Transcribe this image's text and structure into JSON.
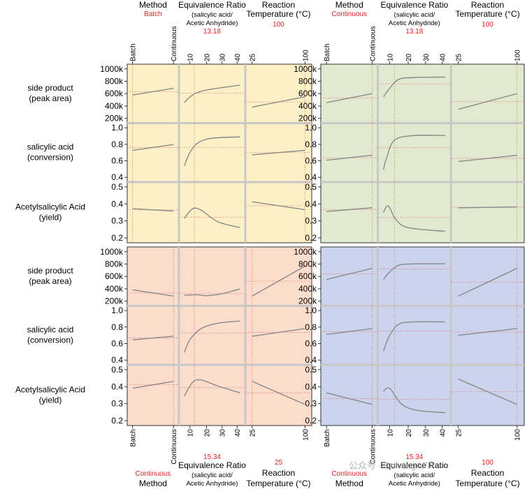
{
  "chart_data": {
    "type": "line",
    "title": "Prediction profiler",
    "factors": [
      {
        "name": "Method",
        "ticks": [
          "Batch",
          "Continuous"
        ]
      },
      {
        "name": "Equivalence Ratio",
        "sub1": "(salicylic acid/",
        "sub2": "Acetic Anhydride)",
        "ticks": [
          "10",
          "20",
          "30",
          "40"
        ]
      },
      {
        "name": "Reaction",
        "name2": "Temperature (°C)",
        "ticks": [
          "25",
          "100"
        ]
      }
    ],
    "responses": [
      {
        "label1": "side product",
        "label2": "(peak area)",
        "ticks": [
          "1000k",
          "800k",
          "600k",
          "400k",
          "200k"
        ]
      },
      {
        "label1": "salicylic acid",
        "label2": "(conversion)",
        "ticks": [
          "1.0",
          "0.8",
          "0.6",
          "0.4"
        ]
      },
      {
        "label1": "Acetylsalicylic Acid",
        "label2": "(yield)",
        "ticks": [
          "0.5",
          "0.4",
          "0.3",
          "0.2"
        ]
      }
    ],
    "panels": [
      {
        "id": "batch-high-temp",
        "bg": "#fdf0c6",
        "settings": {
          "method": "Batch",
          "ratio": "13.18",
          "temp": "100"
        },
        "curves": [
          [
            [
              [
                0,
                0.47
              ],
              [
                1,
                0.62
              ]
            ],
            [
              [
                0,
                0.3
              ],
              [
                0.15,
                0.47
              ],
              [
                0.4,
                0.58
              ],
              [
                1,
                0.69
              ]
            ],
            [
              [
                0,
                0.2
              ],
              [
                1,
                0.43
              ]
            ]
          ],
          [
            [
              [
                0,
                0.55
              ],
              [
                1,
                0.68
              ]
            ],
            [
              [
                0,
                0.2
              ],
              [
                0.1,
                0.5
              ],
              [
                0.25,
                0.72
              ],
              [
                0.5,
                0.82
              ],
              [
                1,
                0.85
              ]
            ],
            [
              [
                0,
                0.45
              ],
              [
                1,
                0.55
              ]
            ]
          ],
          [
            [
              [
                0,
                0.58
              ],
              [
                1,
                0.53
              ]
            ],
            [
              [
                0,
                0.37
              ],
              [
                0.15,
                0.58
              ],
              [
                0.3,
                0.55
              ],
              [
                0.6,
                0.3
              ],
              [
                1,
                0.17
              ]
            ],
            [
              [
                0,
                0.73
              ],
              [
                1,
                0.56
              ]
            ]
          ]
        ]
      },
      {
        "id": "continuous-high-temp",
        "bg": "#e1eacf",
        "settings": {
          "method": "Continuous",
          "ratio": "13.18",
          "temp": "100"
        },
        "curves": [
          [
            [
              [
                0,
                0.3
              ],
              [
                1,
                0.5
              ]
            ],
            [
              [
                0,
                0.43
              ],
              [
                0.1,
                0.62
              ],
              [
                0.25,
                0.82
              ],
              [
                0.5,
                0.86
              ],
              [
                1,
                0.87
              ]
            ],
            [
              [
                0,
                0.15
              ],
              [
                1,
                0.5
              ]
            ]
          ],
          [
            [
              [
                0,
                0.33
              ],
              [
                1,
                0.44
              ]
            ],
            [
              [
                0,
                0.12
              ],
              [
                0.05,
                0.38
              ],
              [
                0.18,
                0.78
              ],
              [
                0.5,
                0.88
              ],
              [
                1,
                0.88
              ]
            ],
            [
              [
                0,
                0.3
              ],
              [
                1,
                0.44
              ]
            ]
          ],
          [
            [
              [
                0,
                0.52
              ],
              [
                1,
                0.6
              ]
            ],
            [
              [
                0,
                0.5
              ],
              [
                0.05,
                0.63
              ],
              [
                0.1,
                0.6
              ],
              [
                0.2,
                0.35
              ],
              [
                0.4,
                0.17
              ],
              [
                1,
                0.09
              ]
            ],
            [
              [
                0,
                0.6
              ],
              [
                1,
                0.62
              ]
            ]
          ]
        ]
      },
      {
        "id": "continuous-low-temp",
        "bg": "#fcdccb",
        "settings": {
          "method": "Continuous",
          "ratio": "15.34",
          "temp": "25"
        },
        "curves": [
          [
            [
              [
                0,
                0.2
              ],
              [
                1,
                0.06
              ]
            ],
            [
              [
                0,
                0.08
              ],
              [
                0.25,
                0.09
              ],
              [
                0.4,
                0.07
              ],
              [
                0.7,
                0.12
              ],
              [
                1,
                0.22
              ]
            ],
            [
              [
                0,
                0.06
              ],
              [
                1,
                0.73
              ]
            ]
          ],
          [
            [
              [
                0,
                0.4
              ],
              [
                1,
                0.48
              ]
            ],
            [
              [
                0,
                0.12
              ],
              [
                0.1,
                0.4
              ],
              [
                0.3,
                0.65
              ],
              [
                0.6,
                0.77
              ],
              [
                1,
                0.82
              ]
            ],
            [
              [
                0,
                0.48
              ],
              [
                1,
                0.65
              ]
            ]
          ],
          [
            [
              [
                0,
                0.65
              ],
              [
                1,
                0.8
              ]
            ],
            [
              [
                0,
                0.48
              ],
              [
                0.15,
                0.78
              ],
              [
                0.3,
                0.83
              ],
              [
                0.6,
                0.7
              ],
              [
                1,
                0.55
              ]
            ],
            [
              [
                0,
                0.8
              ],
              [
                1,
                0.3
              ]
            ]
          ]
        ]
      },
      {
        "id": "batch-low-temp",
        "bg": "#cbd4ec",
        "settings": {
          "method": "Continuous",
          "ratio": "15.34",
          "temp": "100"
        },
        "curves": [
          [
            [
              [
                0,
                0.43
              ],
              [
                1,
                0.68
              ]
            ],
            [
              [
                0,
                0.43
              ],
              [
                0.1,
                0.6
              ],
              [
                0.25,
                0.75
              ],
              [
                0.5,
                0.78
              ],
              [
                1,
                0.78
              ]
            ],
            [
              [
                0,
                0.06
              ],
              [
                1,
                0.68
              ]
            ]
          ],
          [
            [
              [
                0,
                0.52
              ],
              [
                1,
                0.65
              ]
            ],
            [
              [
                0,
                0.15
              ],
              [
                0.1,
                0.5
              ],
              [
                0.25,
                0.75
              ],
              [
                0.5,
                0.8
              ],
              [
                1,
                0.8
              ]
            ],
            [
              [
                0,
                0.5
              ],
              [
                1,
                0.65
              ]
            ]
          ],
          [
            [
              [
                0,
                0.55
              ],
              [
                1,
                0.3
              ]
            ],
            [
              [
                0,
                0.58
              ],
              [
                0.05,
                0.65
              ],
              [
                0.12,
                0.62
              ],
              [
                0.3,
                0.3
              ],
              [
                0.55,
                0.17
              ],
              [
                1,
                0.12
              ]
            ],
            [
              [
                0,
                0.85
              ],
              [
                1,
                0.3
              ]
            ]
          ]
        ]
      }
    ],
    "bottom_ratio_value": "15.34",
    "bottom_temp_value": "25",
    "bottom_right_ratio_value": "15.34",
    "bottom_right_temp_value": "100",
    "watermark": "公众号 · CorningAFR"
  }
}
